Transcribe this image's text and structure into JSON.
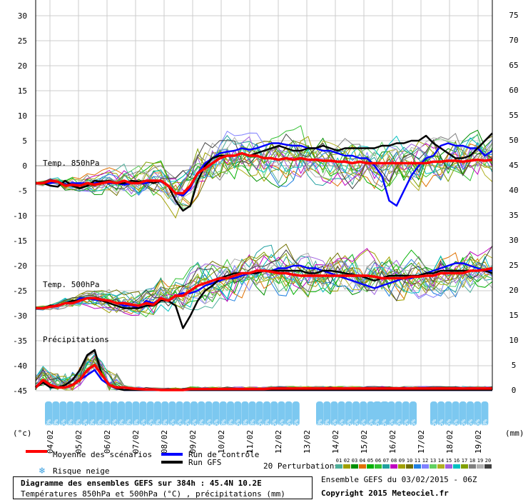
{
  "chart_data": {
    "type": "line",
    "title": "Diagramme des ensembles GEFS sur 384h : 45.4N 10.2E",
    "subtitle": "Températures 850hPa et 500hPa (°C) , précipitations (mm)",
    "ylabel_left": "(°c)",
    "ylabel_right": "(mm)",
    "left_axis": {
      "ticks": [
        30,
        25,
        20,
        15,
        10,
        5,
        0,
        -5,
        -10,
        -15,
        -20,
        -25,
        -30,
        -35,
        -40,
        -45
      ],
      "ylim": [
        -45,
        30
      ]
    },
    "right_axis": {
      "ticks": [
        75,
        70,
        65,
        60,
        55,
        50,
        45,
        40,
        35,
        30,
        25,
        20,
        15,
        10,
        5,
        0
      ],
      "ylim": [
        0,
        75
      ]
    },
    "x_ticks": [
      "04/02",
      "05/02",
      "06/02",
      "07/02",
      "08/02",
      "09/02",
      "10/02",
      "11/02",
      "12/02",
      "13/02",
      "14/02",
      "15/02",
      "16/02",
      "17/02",
      "18/02",
      "19/02"
    ],
    "x_range_hours": [
      0,
      384
    ],
    "panel_labels": {
      "t850": "Temp. 850hPa",
      "t500": "Temp. 500hPa",
      "precip": "Précipitations"
    },
    "legend": {
      "mean": "Moyenne des scénarios",
      "control": "Run de contrôle",
      "gfs": "Run GFS",
      "snow": "Risque neige",
      "perturbations": "20 Perturbations",
      "perturbation_ids": [
        "01",
        "02",
        "03",
        "04",
        "05",
        "06",
        "07",
        "08",
        "09",
        "10",
        "11",
        "12",
        "13",
        "14",
        "15",
        "16",
        "17",
        "18",
        "19",
        "20"
      ],
      "colors": {
        "mean": "#ff0000",
        "control": "#0000ff",
        "gfs": "#000000"
      },
      "perturbation_colors": [
        "#4daf9a",
        "#a0a000",
        "#009000",
        "#e07000",
        "#00b000",
        "#30c030",
        "#20a0a0",
        "#c000c0",
        "#a0a000",
        "#707000",
        "#2080e0",
        "#8080ff",
        "#60d060",
        "#b0b020",
        "#a060e0",
        "#00c0c0",
        "#80a000",
        "#808080",
        "#b0b0b0",
        "#404040"
      ]
    },
    "snow_risk_probabilities": {
      "a": [
        "40%",
        "40%",
        "25%",
        "10%",
        "10%",
        "55%",
        "70%",
        "70%",
        "70%",
        "85%",
        "60%",
        "60%",
        "40%",
        "55%",
        "65%",
        "40%",
        "30%",
        "25%",
        "5%",
        "5%",
        "15%",
        "10%",
        "15%",
        "5%",
        "10%",
        "10%",
        "15%",
        "10%",
        "10%",
        "5%",
        "10%",
        "5%",
        "5%",
        "5%",
        "5%"
      ],
      "b": [
        "10%",
        "10%",
        "15%",
        "5%",
        "5%",
        "5%",
        "5%",
        "5%",
        "5%",
        "5%"
      ],
      "c": [
        "5%",
        "5%",
        "5%",
        "5%",
        "5%",
        "5%"
      ],
      "d": [
        "5%",
        "5%",
        "5%",
        "5%",
        "5%",
        "5%",
        "5%",
        "10%"
      ]
    },
    "series": [
      {
        "name": "Moyenne des scénarios",
        "key": "mean_t850",
        "values": [
          -3.5,
          -3.5,
          -3,
          -3.2,
          -4,
          -3.8,
          -4,
          -3.5,
          -3.8,
          -3.5,
          -3.2,
          -3.5,
          -3,
          -3.5,
          -3.5,
          -3,
          -3,
          -3,
          -4,
          -5.5,
          -5.5,
          -4,
          -1.5,
          -0.5,
          0.5,
          1.5,
          2,
          2,
          2.5,
          2,
          2,
          1.5,
          1.5,
          1.2,
          1.5,
          1.2,
          1.5,
          1.2,
          1.2,
          1,
          1,
          0.8,
          0.8,
          0.5,
          0.8,
          0.5,
          0.5,
          0.5,
          0.5,
          0.5,
          0.5,
          0.5,
          0.5,
          0.5,
          0.8,
          0.8,
          1,
          1,
          0.8,
          1,
          1.2,
          1,
          1.2
        ]
      },
      {
        "name": "Run de contrôle",
        "key": "control_t850",
        "values": [
          -3.5,
          -3.5,
          -3.5,
          -3.2,
          -3.8,
          -3.5,
          -3.5,
          -3.5,
          -3.5,
          -3.2,
          -3.5,
          -3.5,
          -3.8,
          -3.5,
          -3.5,
          -3.5,
          -3,
          -3.2,
          -4,
          -5.5,
          -6,
          -4.5,
          -1.5,
          0.5,
          1.5,
          2.5,
          2.8,
          3,
          3.5,
          3.2,
          3.5,
          4,
          4.5,
          4.5,
          4.2,
          4,
          4,
          3.5,
          3.5,
          3,
          3,
          2.5,
          2,
          2,
          1.5,
          1.5,
          0,
          -2,
          -7,
          -8,
          -5,
          -2,
          0,
          1.5,
          2,
          4,
          4.5,
          4,
          4,
          3.5,
          3.5,
          2,
          3
        ]
      },
      {
        "name": "Run GFS",
        "key": "gfs_t850",
        "values": [
          -3.5,
          -3.5,
          -4,
          -4.2,
          -3,
          -4,
          -4.5,
          -4,
          -3,
          -3.2,
          -3,
          -3.5,
          -3.5,
          -3,
          -3.2,
          -3,
          -3.5,
          -3,
          -4,
          -7,
          -9,
          -8,
          -3,
          0,
          1.5,
          2,
          2,
          2,
          2.5,
          2,
          2.5,
          3,
          3.5,
          4,
          3.5,
          3,
          3,
          3.5,
          3.5,
          4,
          3.5,
          3,
          3.5,
          3.5,
          3.5,
          3.5,
          3.5,
          4,
          4,
          4.5,
          4.5,
          5,
          5,
          6,
          4.5,
          3.5,
          2.5,
          1.5,
          1.5,
          2,
          3.5,
          5,
          6.5
        ]
      },
      {
        "name": "Moyenne des scénarios",
        "key": "mean_t500",
        "values": [
          -28.5,
          -28.5,
          -28.2,
          -28,
          -27.5,
          -27.5,
          -27,
          -26.5,
          -26.5,
          -26.8,
          -27,
          -27.5,
          -27.5,
          -27.8,
          -28,
          -27.5,
          -27.8,
          -26.5,
          -27,
          -26,
          -26,
          -25,
          -24,
          -23.5,
          -23,
          -22.5,
          -22.5,
          -22,
          -21.5,
          -21.5,
          -21,
          -21,
          -21.2,
          -21.5,
          -21.5,
          -21.8,
          -22,
          -22,
          -22,
          -22,
          -22,
          -22,
          -22,
          -22,
          -22,
          -22,
          -22.2,
          -22.5,
          -22.5,
          -22.5,
          -22.5,
          -22.2,
          -22.2,
          -22,
          -22,
          -21.5,
          -21.5,
          -21.5,
          -21.5,
          -21,
          -21,
          -20.8,
          -20.5
        ]
      },
      {
        "name": "Run de contrôle",
        "key": "control_t500",
        "values": [
          -28.5,
          -28.5,
          -28,
          -28,
          -27.5,
          -27.5,
          -26.5,
          -26.5,
          -26.8,
          -27,
          -27,
          -27.5,
          -28,
          -28,
          -28.5,
          -27,
          -27.5,
          -26.5,
          -27,
          -26,
          -25.5,
          -25.5,
          -25,
          -24,
          -23.5,
          -23,
          -22.5,
          -22.5,
          -22,
          -21.5,
          -21.5,
          -21,
          -21,
          -20.5,
          -20.5,
          -20,
          -20,
          -20.5,
          -20.5,
          -21,
          -21.5,
          -22,
          -22.5,
          -23,
          -23.5,
          -24,
          -24.5,
          -24,
          -23.5,
          -23,
          -22.5,
          -22.5,
          -22,
          -21.5,
          -21,
          -20.5,
          -20,
          -19.5,
          -19.5,
          -20,
          -20.5,
          -21,
          -21
        ]
      },
      {
        "name": "Run GFS",
        "key": "gfs_t500",
        "values": [
          -28.5,
          -28.5,
          -28,
          -28,
          -27.5,
          -27,
          -27,
          -26.5,
          -26.5,
          -27,
          -27.5,
          -28,
          -28.5,
          -28.5,
          -28.5,
          -28,
          -28,
          -27,
          -27,
          -28,
          -32.5,
          -30,
          -27,
          -25,
          -24,
          -22.5,
          -22,
          -21.5,
          -21.5,
          -21.5,
          -21.5,
          -21,
          -21,
          -21,
          -21,
          -21,
          -21,
          -21.5,
          -21.5,
          -21,
          -21,
          -21.2,
          -21.5,
          -21.8,
          -22,
          -22.5,
          -23,
          -22.5,
          -22,
          -22,
          -22,
          -22,
          -22,
          -21.5,
          -21.5,
          -21,
          -21,
          -21,
          -21,
          -21,
          -21,
          -21,
          -21.5
        ]
      },
      {
        "name": "Moyenne des scénarios",
        "key": "mean_precip",
        "values": [
          0.5,
          2,
          1,
          0.5,
          0.5,
          1,
          2,
          4,
          5,
          3,
          1,
          0.5,
          0.5,
          0.3,
          0.2,
          0.1,
          0.1,
          0,
          0,
          0,
          0,
          0.2,
          0.2,
          0.2,
          0.2,
          0.2,
          0.2,
          0.2,
          0.2,
          0.2,
          0.2,
          0.2,
          0.3,
          0.3,
          0.3,
          0.3,
          0.3,
          0.3,
          0.3,
          0.3,
          0.3,
          0.3,
          0.3,
          0.3,
          0.3,
          0.3,
          0.3,
          0.3,
          0.3,
          0.3,
          0.3,
          0.3,
          0.3,
          0.3,
          0.3,
          0.3,
          0.3,
          0.3,
          0.3,
          0.3,
          0.3,
          0.3,
          0.3
        ]
      },
      {
        "name": "Run de contrôle",
        "key": "control_precip",
        "values": [
          0.5,
          1.5,
          1,
          0.5,
          0.5,
          1,
          2,
          3,
          4,
          2,
          1,
          0.5,
          0,
          0,
          0,
          0,
          0,
          0,
          0,
          0,
          0,
          0,
          0,
          0,
          0,
          0,
          0,
          0,
          0,
          0,
          0,
          0,
          0,
          0,
          0,
          0,
          0,
          0,
          0,
          0,
          0,
          0,
          0,
          0,
          0,
          0,
          0,
          0,
          0,
          0,
          0,
          0,
          0,
          0,
          0,
          0,
          0,
          0,
          0,
          0,
          0,
          0,
          0
        ]
      },
      {
        "name": "Run GFS",
        "key": "gfs_precip",
        "values": [
          0.5,
          1.5,
          0.5,
          0.5,
          1,
          2,
          4,
          7,
          8,
          3,
          1,
          0.3,
          0,
          0,
          0,
          0,
          0,
          0,
          0,
          0,
          0,
          0,
          0,
          0,
          0,
          0,
          0,
          0,
          0,
          0,
          0,
          0,
          0,
          0,
          0,
          0,
          0,
          0,
          0,
          0,
          0,
          0,
          0,
          0,
          0,
          0,
          0,
          0,
          0,
          0,
          0,
          0,
          0,
          0,
          0,
          0,
          0,
          0,
          0,
          0,
          0,
          0,
          0
        ]
      }
    ]
  },
  "footer": {
    "ensemble": "Ensemble GEFS du 03/02/2015 - 06Z",
    "copyright": "Copyright 2015 Meteociel.fr"
  }
}
